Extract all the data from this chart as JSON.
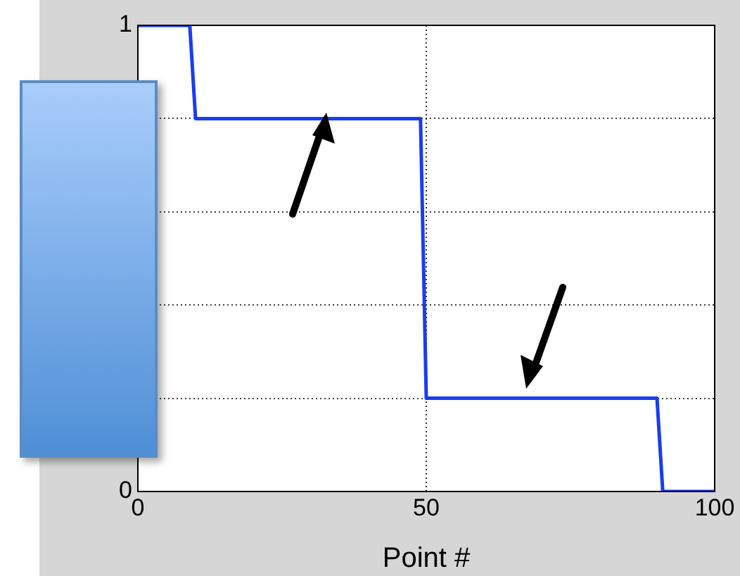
{
  "chart_data": {
    "type": "line",
    "xlabel": "Point #",
    "xlim": [
      0,
      100
    ],
    "xticks": [
      0,
      50,
      100
    ],
    "ylim": [
      0,
      1
    ],
    "yticks": [
      0,
      {
        "value": 0.2,
        "label": null
      },
      {
        "value": 0.4,
        "label": null
      },
      {
        "value": 0.6,
        "label": null
      },
      {
        "value": 0.8,
        "label": null
      },
      1
    ],
    "grid": true,
    "legend": false,
    "marker": "none",
    "line_style": "solid",
    "series": [
      {
        "color": "#1a3cf0",
        "x": [
          0,
          9,
          10,
          49,
          50,
          90,
          91,
          100
        ],
        "values": [
          1,
          1,
          0.8,
          0.8,
          0.2,
          0.2,
          0,
          0
        ]
      }
    ]
  }
}
